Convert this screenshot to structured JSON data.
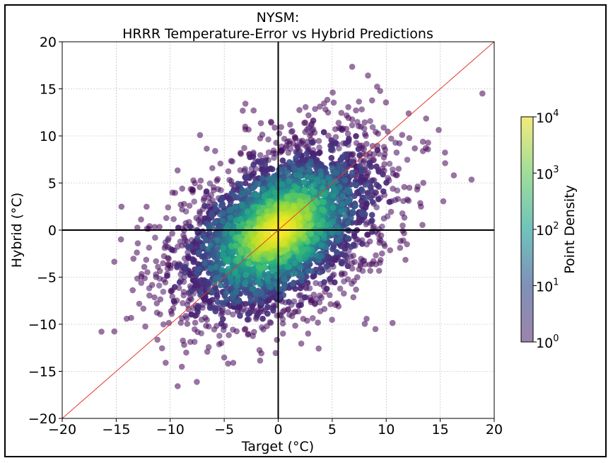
{
  "chart_data": {
    "type": "scatter",
    "title_line1": "NYSM:",
    "title_line2": "HRRR Temperature-Error vs Hybrid Predictions",
    "xlabel": "Target (°C)",
    "ylabel": "Hybrid (°C)",
    "xlim": [
      -20,
      20
    ],
    "ylim": [
      -20,
      20
    ],
    "xticks": [
      -20,
      -15,
      -10,
      -5,
      0,
      5,
      10,
      15,
      20
    ],
    "yticks": [
      -20,
      -15,
      -10,
      -5,
      0,
      5,
      10,
      15,
      20
    ],
    "xtick_labels": [
      "−20",
      "−15",
      "−10",
      "−5",
      "0",
      "5",
      "10",
      "15",
      "20"
    ],
    "ytick_labels": [
      "−20",
      "−15",
      "−10",
      "−5",
      "0",
      "5",
      "10",
      "15",
      "20"
    ],
    "grid": true,
    "reference_lines": [
      "x = 0",
      "y = 0",
      "y = x"
    ],
    "reference_line_color": "#e03a2e",
    "point_distribution": {
      "center": [
        0,
        0
      ],
      "x_range": [
        -16,
        20
      ],
      "y_range": [
        -17,
        19
      ],
      "correlation": "positive"
    },
    "colorbar": {
      "label": "Point Density",
      "scale": "log",
      "range": [
        1,
        10000
      ],
      "tick_labels": [
        "10",
        "10",
        "10",
        "10",
        "10"
      ],
      "tick_exponents": [
        "0",
        "1",
        "2",
        "3",
        "4"
      ],
      "colormap": "viridis",
      "colors": [
        "#440154",
        "#3b528b",
        "#21918c",
        "#5ec962",
        "#fde725"
      ]
    }
  }
}
